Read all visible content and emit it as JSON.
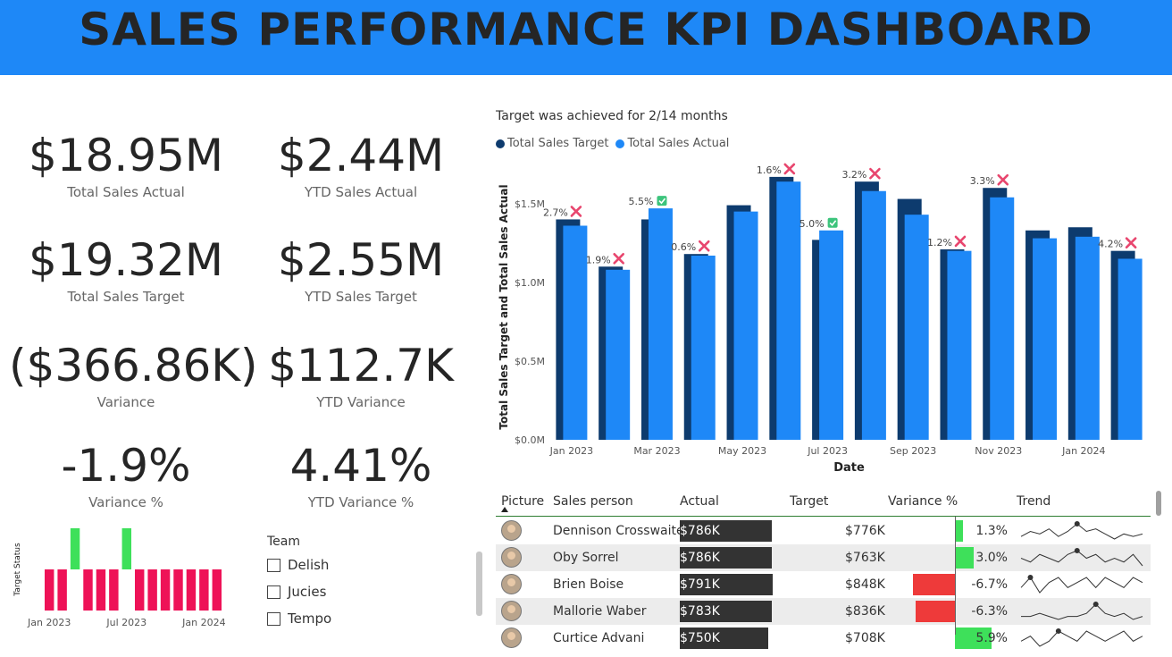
{
  "header": {
    "title": "SALES PERFORMANCE KPI DASHBOARD"
  },
  "kpis": {
    "total_sales_actual": {
      "value": "$18.95M",
      "label": "Total Sales Actual"
    },
    "ytd_sales_actual": {
      "value": "$2.44M",
      "label": "YTD Sales Actual"
    },
    "total_sales_target": {
      "value": "$19.32M",
      "label": "Total Sales Target"
    },
    "ytd_sales_target": {
      "value": "$2.55M",
      "label": "YTD Sales Target"
    },
    "variance": {
      "value": "($366.86K)",
      "label": "Variance"
    },
    "ytd_variance": {
      "value": "$112.7K",
      "label": "YTD Variance"
    },
    "variance_pct": {
      "value": "-1.9%",
      "label": "Variance %"
    },
    "ytd_variance_pct": {
      "value": "4.41%",
      "label": "YTD Variance %"
    }
  },
  "colors": {
    "banner": "#1e88f7",
    "target": "#0d3b6e",
    "actual": "#1e88f7",
    "achieved": "#3ee05a",
    "missed": "#ee1257",
    "cross": "#e8466e",
    "check": "#3cc47c"
  },
  "chart_data": [
    {
      "type": "bar",
      "title": "Target was achieved for 2/14 months",
      "xlabel": "Date",
      "ylabel": "Total Sales Target and Total Sales Actual",
      "ylim": [
        0,
        1.8
      ],
      "yticks": [
        "$0.0M",
        "$0.5M",
        "$1.0M",
        "$1.5M"
      ],
      "ytick_values": [
        0,
        0.5,
        1.0,
        1.5
      ],
      "xtick_labels": [
        "Jan 2023",
        "Mar 2023",
        "May 2023",
        "Jul 2023",
        "Sep 2023",
        "Nov 2023",
        "Jan 2024"
      ],
      "xtick_indices": [
        0,
        2,
        4,
        6,
        8,
        10,
        12
      ],
      "legend": "top-left",
      "series": [
        {
          "name": "Total Sales Target",
          "values": [
            1.4,
            1.1,
            1.4,
            1.18,
            1.49,
            1.67,
            1.27,
            1.64,
            1.53,
            1.21,
            1.6,
            1.33,
            1.35,
            1.2
          ]
        },
        {
          "name": "Total Sales Actual",
          "values": [
            1.36,
            1.08,
            1.47,
            1.17,
            1.45,
            1.64,
            1.33,
            1.58,
            1.43,
            1.2,
            1.54,
            1.28,
            1.29,
            1.15
          ]
        }
      ],
      "labels": [
        "2.7%",
        "1.9%",
        "5.5%",
        "0.6%",
        "",
        "1.6%",
        "5.0%",
        "3.2%",
        "",
        "1.2%",
        "3.3%",
        "",
        "",
        "4.2%"
      ],
      "status": [
        "missed",
        "missed",
        "achieved",
        "missed",
        "",
        "missed",
        "achieved",
        "missed",
        "",
        "missed",
        "missed",
        "",
        "",
        "missed"
      ]
    },
    {
      "type": "bar",
      "ylabel": "Target Status",
      "xtick_labels": [
        "Jan 2023",
        "Jul 2023",
        "Jan 2024"
      ],
      "xtick_indices": [
        0,
        6,
        12
      ],
      "values": [
        -1,
        -1,
        1,
        -1,
        -1,
        -1,
        1,
        -1,
        -1,
        -1,
        -1,
        -1,
        -1,
        -1
      ]
    }
  ],
  "team_filter": {
    "title": "Team",
    "options": [
      "Delish",
      "Jucies",
      "Tempo"
    ]
  },
  "table": {
    "headers": [
      "Picture",
      "Sales person",
      "Actual",
      "Target",
      "Variance %",
      "Trend"
    ],
    "rows": [
      {
        "name": "Dennison Crosswaite",
        "actual": "$786K",
        "actual_value": 786,
        "target": "$776K",
        "variance": "1.3%",
        "variance_value": 1.3,
        "trend": [
          3,
          5,
          4,
          6,
          3,
          5,
          8,
          5,
          6,
          4,
          2,
          4,
          3,
          4
        ]
      },
      {
        "name": "Oby Sorrel",
        "actual": "$786K",
        "actual_value": 786,
        "target": "$763K",
        "variance": "3.0%",
        "variance_value": 3.0,
        "trend": [
          5,
          4,
          6,
          5,
          4,
          6,
          7,
          5,
          6,
          4,
          5,
          4,
          6,
          3
        ]
      },
      {
        "name": "Brien Boise",
        "actual": "$791K",
        "actual_value": 791,
        "target": "$848K",
        "variance": "-6.7%",
        "variance_value": -6.7,
        "trend": [
          4,
          6,
          3,
          5,
          6,
          4,
          5,
          6,
          4,
          6,
          5,
          4,
          6,
          5
        ]
      },
      {
        "name": "Mallorie Waber",
        "actual": "$783K",
        "actual_value": 783,
        "target": "$836K",
        "variance": "-6.3%",
        "variance_value": -6.3,
        "trend": [
          4,
          4,
          5,
          4,
          3,
          4,
          4,
          5,
          8,
          5,
          4,
          5,
          3,
          4
        ]
      },
      {
        "name": "Curtice Advani",
        "actual": "$750K",
        "actual_value": 750,
        "target": "$708K",
        "variance": "5.9%",
        "variance_value": 5.9,
        "trend": [
          4,
          5,
          3,
          4,
          6,
          5,
          4,
          6,
          5,
          4,
          5,
          6,
          4,
          5
        ]
      }
    ]
  }
}
